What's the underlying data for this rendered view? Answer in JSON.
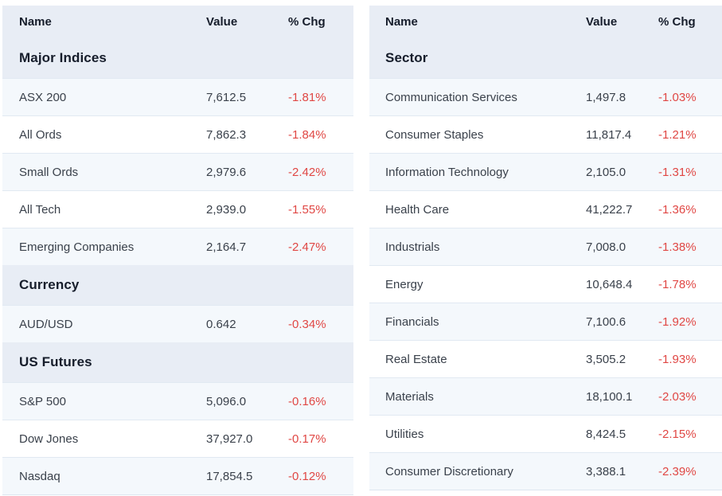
{
  "colors": {
    "negative": "#e04744",
    "header_bg": "#e8edf5",
    "row_alt_bg": "#f4f8fc",
    "row_bg": "#ffffff",
    "heading_text": "#161d2b",
    "body_text": "#3a414b",
    "border": "#e1e9f2"
  },
  "tables": [
    {
      "id": "indices",
      "headers": [
        "Name",
        "Value",
        "% Chg"
      ],
      "sections": [
        {
          "title": "Major Indices",
          "rows": [
            {
              "name": "ASX 200",
              "value": "7,612.5",
              "chg": "-1.81%"
            },
            {
              "name": "All Ords",
              "value": "7,862.3",
              "chg": "-1.84%"
            },
            {
              "name": "Small Ords",
              "value": "2,979.6",
              "chg": "-2.42%"
            },
            {
              "name": "All Tech",
              "value": "2,939.0",
              "chg": "-1.55%"
            },
            {
              "name": "Emerging Companies",
              "value": "2,164.7",
              "chg": "-2.47%"
            }
          ]
        },
        {
          "title": "Currency",
          "rows": [
            {
              "name": "AUD/USD",
              "value": "0.642",
              "chg": "-0.34%"
            }
          ]
        },
        {
          "title": "US Futures",
          "rows": [
            {
              "name": "S&P 500",
              "value": "5,096.0",
              "chg": "-0.16%"
            },
            {
              "name": "Dow Jones",
              "value": "37,927.0",
              "chg": "-0.17%"
            },
            {
              "name": "Nasdaq",
              "value": "17,854.5",
              "chg": "-0.12%"
            }
          ]
        }
      ]
    },
    {
      "id": "sectors",
      "headers": [
        "Name",
        "Value",
        "% Chg"
      ],
      "sections": [
        {
          "title": "Sector",
          "rows": [
            {
              "name": "Communication Services",
              "value": "1,497.8",
              "chg": "-1.03%"
            },
            {
              "name": "Consumer Staples",
              "value": "11,817.4",
              "chg": "-1.21%"
            },
            {
              "name": "Information Technology",
              "value": "2,105.0",
              "chg": "-1.31%"
            },
            {
              "name": "Health Care",
              "value": "41,222.7",
              "chg": "-1.36%"
            },
            {
              "name": "Industrials",
              "value": "7,008.0",
              "chg": "-1.38%"
            },
            {
              "name": "Energy",
              "value": "10,648.4",
              "chg": "-1.78%"
            },
            {
              "name": "Financials",
              "value": "7,100.6",
              "chg": "-1.92%"
            },
            {
              "name": "Real Estate",
              "value": "3,505.2",
              "chg": "-1.93%"
            },
            {
              "name": "Materials",
              "value": "18,100.1",
              "chg": "-2.03%"
            },
            {
              "name": "Utilities",
              "value": "8,424.5",
              "chg": "-2.15%"
            },
            {
              "name": "Consumer Discretionary",
              "value": "3,388.1",
              "chg": "-2.39%"
            }
          ]
        }
      ]
    }
  ]
}
